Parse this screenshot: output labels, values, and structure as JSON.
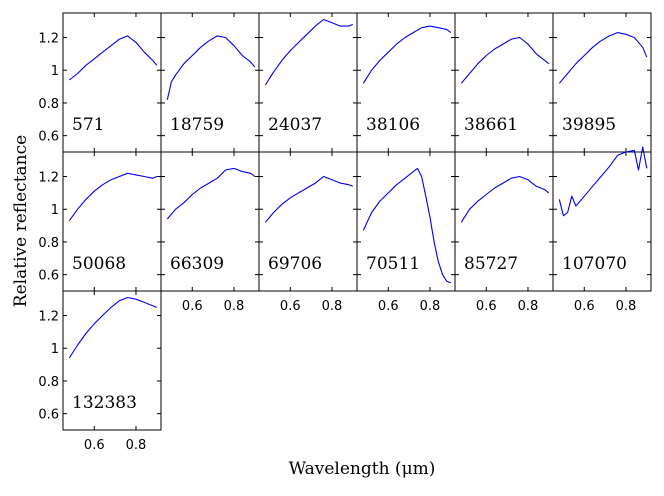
{
  "chart_data": {
    "type": "line",
    "xlabel": "Wavelength (μm)",
    "ylabel": "Relative reflectance",
    "xlim": [
      0.45,
      0.92
    ],
    "ylim": [
      0.5,
      1.35
    ],
    "xticks": [
      0.6,
      0.8
    ],
    "xtick_labels": [
      "0.6",
      "0.8"
    ],
    "yticks": [
      0.6,
      0.8,
      1.0,
      1.2
    ],
    "ytick_labels": [
      "0.6",
      "0.8",
      "1",
      "1.2"
    ],
    "line_color": "#0000ee",
    "layout": {
      "columns": 6,
      "rows": 3,
      "panel_count": 13
    },
    "panels": [
      {
        "label": "571",
        "x": [
          0.48,
          0.52,
          0.56,
          0.6,
          0.64,
          0.68,
          0.72,
          0.76,
          0.8,
          0.84,
          0.88,
          0.9
        ],
        "y": [
          0.94,
          0.98,
          1.03,
          1.07,
          1.11,
          1.15,
          1.19,
          1.21,
          1.17,
          1.11,
          1.06,
          1.03
        ]
      },
      {
        "label": "18759",
        "x": [
          0.48,
          0.5,
          0.52,
          0.56,
          0.6,
          0.64,
          0.68,
          0.72,
          0.76,
          0.8,
          0.84,
          0.88,
          0.9
        ],
        "y": [
          0.82,
          0.93,
          0.97,
          1.04,
          1.09,
          1.14,
          1.18,
          1.21,
          1.2,
          1.15,
          1.09,
          1.05,
          1.02
        ]
      },
      {
        "label": "24037",
        "x": [
          0.48,
          0.52,
          0.56,
          0.6,
          0.64,
          0.68,
          0.72,
          0.76,
          0.8,
          0.84,
          0.88,
          0.9
        ],
        "y": [
          0.91,
          0.99,
          1.06,
          1.12,
          1.17,
          1.22,
          1.27,
          1.31,
          1.29,
          1.27,
          1.27,
          1.28
        ]
      },
      {
        "label": "38106",
        "x": [
          0.48,
          0.52,
          0.56,
          0.6,
          0.64,
          0.68,
          0.72,
          0.76,
          0.8,
          0.84,
          0.88,
          0.9
        ],
        "y": [
          0.92,
          1.0,
          1.06,
          1.11,
          1.16,
          1.2,
          1.23,
          1.26,
          1.27,
          1.26,
          1.25,
          1.23
        ]
      },
      {
        "label": "38661",
        "x": [
          0.48,
          0.52,
          0.56,
          0.6,
          0.64,
          0.68,
          0.72,
          0.76,
          0.8,
          0.84,
          0.88,
          0.9
        ],
        "y": [
          0.92,
          0.98,
          1.04,
          1.09,
          1.13,
          1.16,
          1.19,
          1.2,
          1.16,
          1.1,
          1.06,
          1.04
        ]
      },
      {
        "label": "39895",
        "x": [
          0.48,
          0.52,
          0.56,
          0.6,
          0.64,
          0.68,
          0.72,
          0.76,
          0.8,
          0.84,
          0.88,
          0.9
        ],
        "y": [
          0.92,
          0.98,
          1.04,
          1.09,
          1.14,
          1.18,
          1.21,
          1.23,
          1.22,
          1.2,
          1.14,
          1.08
        ]
      },
      {
        "label": "50068",
        "x": [
          0.48,
          0.52,
          0.56,
          0.6,
          0.64,
          0.68,
          0.72,
          0.76,
          0.8,
          0.84,
          0.88,
          0.9
        ],
        "y": [
          0.93,
          1.0,
          1.06,
          1.11,
          1.15,
          1.18,
          1.2,
          1.22,
          1.21,
          1.2,
          1.19,
          1.2
        ]
      },
      {
        "label": "66309",
        "x": [
          0.48,
          0.52,
          0.56,
          0.6,
          0.64,
          0.68,
          0.72,
          0.76,
          0.8,
          0.84,
          0.88,
          0.9
        ],
        "y": [
          0.94,
          1.0,
          1.04,
          1.09,
          1.13,
          1.16,
          1.19,
          1.24,
          1.25,
          1.23,
          1.22,
          1.2
        ]
      },
      {
        "label": "69706",
        "x": [
          0.48,
          0.52,
          0.56,
          0.6,
          0.64,
          0.68,
          0.72,
          0.76,
          0.8,
          0.84,
          0.88,
          0.9
        ],
        "y": [
          0.92,
          0.98,
          1.03,
          1.07,
          1.1,
          1.13,
          1.16,
          1.2,
          1.18,
          1.16,
          1.15,
          1.14
        ]
      },
      {
        "label": "70511",
        "x": [
          0.48,
          0.52,
          0.56,
          0.6,
          0.64,
          0.68,
          0.72,
          0.74,
          0.76,
          0.78,
          0.8,
          0.82,
          0.84,
          0.86,
          0.88,
          0.9
        ],
        "y": [
          0.87,
          0.98,
          1.05,
          1.1,
          1.15,
          1.19,
          1.23,
          1.25,
          1.2,
          1.08,
          0.95,
          0.8,
          0.68,
          0.6,
          0.56,
          0.55
        ]
      },
      {
        "label": "85727",
        "x": [
          0.48,
          0.52,
          0.56,
          0.6,
          0.64,
          0.68,
          0.72,
          0.76,
          0.8,
          0.84,
          0.88,
          0.9
        ],
        "y": [
          0.92,
          1.0,
          1.05,
          1.09,
          1.13,
          1.16,
          1.19,
          1.2,
          1.18,
          1.14,
          1.12,
          1.1
        ]
      },
      {
        "label": "107070",
        "x": [
          0.48,
          0.5,
          0.52,
          0.54,
          0.56,
          0.6,
          0.64,
          0.68,
          0.72,
          0.76,
          0.8,
          0.84,
          0.86,
          0.88,
          0.9
        ],
        "y": [
          1.06,
          0.96,
          0.98,
          1.08,
          1.02,
          1.08,
          1.14,
          1.2,
          1.26,
          1.33,
          1.35,
          1.36,
          1.24,
          1.38,
          1.25
        ]
      },
      {
        "label": "132383",
        "x": [
          0.48,
          0.52,
          0.56,
          0.6,
          0.64,
          0.68,
          0.72,
          0.76,
          0.8,
          0.84,
          0.88,
          0.9
        ],
        "y": [
          0.94,
          1.02,
          1.09,
          1.15,
          1.2,
          1.25,
          1.29,
          1.31,
          1.3,
          1.28,
          1.26,
          1.25
        ]
      }
    ]
  }
}
